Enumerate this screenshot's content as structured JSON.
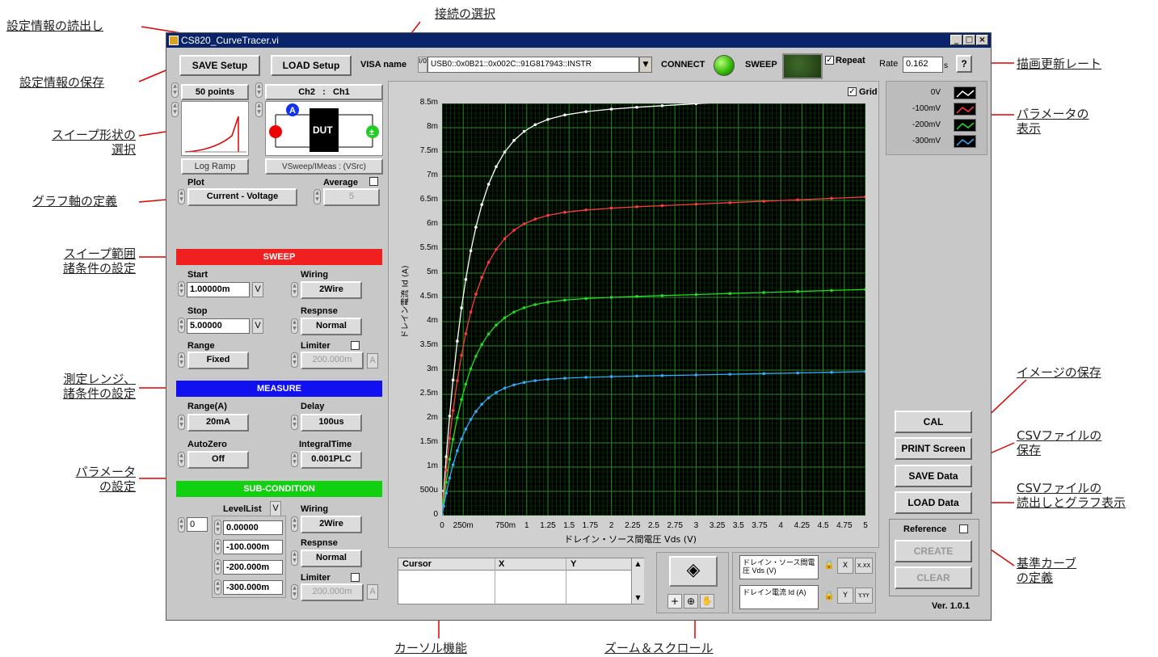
{
  "callouts": {
    "settings_load": "設定情報の読出し",
    "connection_select": "接続の選択",
    "settings_save": "設定情報の保存",
    "sweep_shape_1": "スイープ形状の",
    "sweep_shape_2": "選択",
    "graph_axis": "グラフ軸の定義",
    "sweep_range_1": "スイープ範囲",
    "sweep_range_2": "諸条件の設定",
    "measure_range_1": "測定レンジ、",
    "measure_range_2": "諸条件の設定",
    "param_1": "パラメータ",
    "param_2": "の設定",
    "cursor": "カーソル機能",
    "zoom": "ズーム＆スクロール",
    "rate": "描画更新レート",
    "param_disp_1": "パラメータの",
    "param_disp_2": "表示",
    "image_save": "イメージの保存",
    "csv_save_1": "CSVファイルの",
    "csv_save_2": "保存",
    "csv_load_1": "CSVファイルの",
    "csv_load_2": "読出しとグラフ表示",
    "ref_1": "基準カーブ",
    "ref_2": "の定義"
  },
  "window": {
    "title": "CS820_CurveTracer.vi",
    "min": "_",
    "max": "□",
    "close": "×"
  },
  "toolbar": {
    "save_setup": "SAVE Setup",
    "load_setup": "LOAD Setup",
    "visa_label": "VISA name",
    "visa_prefix": "I/0",
    "visa_value": "USB0::0x0B21::0x002C::91G817943::INSTR",
    "connect_label": "CONNECT",
    "sweep_label": "SWEEP",
    "repeat_label": "Repeat",
    "rate_label": "Rate",
    "rate_value": "0.162",
    "rate_unit": "s",
    "help": "?"
  },
  "left": {
    "points": "50 points",
    "sweep_shape": "Log Ramp",
    "channel": "Ch2   :   Ch1",
    "dut": "DUT",
    "channel_mode": "VSweep/IMeas : (VSrc)",
    "plot_label": "Plot",
    "plot_value": "Current - Voltage",
    "average_label": "Average",
    "average_value": "5",
    "sweep_band": "SWEEP",
    "start_label": "Start",
    "start_value": "1.00000m",
    "start_unit": "V",
    "stop_label": "Stop",
    "stop_value": "5.00000",
    "stop_unit": "V",
    "range_label": "Range",
    "range_value": "Fixed",
    "wiring_label": "Wiring",
    "wiring_value": "2Wire",
    "respnse_label": "Respnse",
    "respnse_value": "Normal",
    "limiter_label": "Limiter",
    "limiter_value": "200.000m",
    "limiter_unit": "A",
    "measure_band": "MEASURE",
    "mrange_label": "Range(A)",
    "mrange_value": "20mA",
    "delay_label": "Delay",
    "delay_value": "100us",
    "autozero_label": "AutoZero",
    "autozero_value": "Off",
    "integral_label": "IntegralTime",
    "integral_value": "0.001PLC",
    "sub_band": "SUB-CONDITION",
    "levellist_label": "LevelList",
    "level_unit": "V",
    "level_index": "0",
    "levels": [
      "0.00000",
      "-100.000m",
      "-200.000m",
      "-300.000m"
    ],
    "sub_wiring_label": "Wiring",
    "sub_wiring_value": "2Wire",
    "sub_respnse_label": "Respnse",
    "sub_respnse_value": "Normal",
    "sub_limiter_label": "Limiter",
    "sub_limiter_value": "200.000m",
    "sub_limiter_unit": "A"
  },
  "graph": {
    "grid_label": "Grid"
  },
  "cursor_table": {
    "headers": [
      "Cursor",
      "X",
      "Y"
    ]
  },
  "axis_ctrl": {
    "x_name": "ドレイン・ソース間電圧 Vds (V)",
    "y_name": "ドレイン電流 Id (A)",
    "x_fmt": "X.XX",
    "y_fmt": "Y.YY"
  },
  "right": {
    "cal": "CAL",
    "print": "PRINT Screen",
    "save_data": "SAVE Data",
    "load_data": "LOAD Data",
    "reference": "Reference",
    "create": "CREATE",
    "clear": "CLEAR",
    "version": "Ver. 1.0.1"
  },
  "chart_data": {
    "type": "line",
    "xlabel": "ドレイン・ソース間電圧 Vds (V)",
    "ylabel": "ドレイン電流 Id (A)",
    "xlim": [
      0,
      5
    ],
    "ylim": [
      0,
      0.0085
    ],
    "grid": true,
    "x_ticks": [
      "0",
      "250m",
      "750m",
      "1",
      "1.25",
      "1.5",
      "1.75",
      "2",
      "2.25",
      "2.5",
      "2.75",
      "3",
      "3.25",
      "3.5",
      "3.75",
      "4",
      "4.25",
      "4.5",
      "4.75",
      "5"
    ],
    "x_tick_values": [
      0,
      0.25,
      0.75,
      1,
      1.25,
      1.5,
      1.75,
      2,
      2.25,
      2.5,
      2.75,
      3,
      3.25,
      3.5,
      3.75,
      4,
      4.25,
      4.5,
      4.75,
      5
    ],
    "y_ticks": [
      "0",
      "500u",
      "1m",
      "1.5m",
      "2m",
      "2.5m",
      "3m",
      "3.5m",
      "4m",
      "4.5m",
      "5m",
      "5.5m",
      "6m",
      "6.5m",
      "7m",
      "7.5m",
      "8m",
      "8.5m"
    ],
    "series": [
      {
        "name": "0V",
        "color": "#ffffff",
        "sat": 0.0082,
        "k": 3.2
      },
      {
        "name": "-100mV",
        "color": "#ff3b3b",
        "sat": 0.0062,
        "k": 3.3
      },
      {
        "name": "-200mV",
        "color": "#22dd22",
        "sat": 0.0044,
        "k": 3.4
      },
      {
        "name": "-300mV",
        "color": "#33aaff",
        "sat": 0.0028,
        "k": 3.6
      }
    ],
    "x_points": [
      0.001,
      0.02,
      0.05,
      0.09,
      0.13,
      0.18,
      0.23,
      0.28,
      0.34,
      0.4,
      0.47,
      0.55,
      0.64,
      0.74,
      0.85,
      0.97,
      1.1,
      1.25,
      1.45,
      1.7,
      2.0,
      2.3,
      2.6,
      3.0,
      3.4,
      3.8,
      4.2,
      4.6,
      5.0
    ]
  }
}
